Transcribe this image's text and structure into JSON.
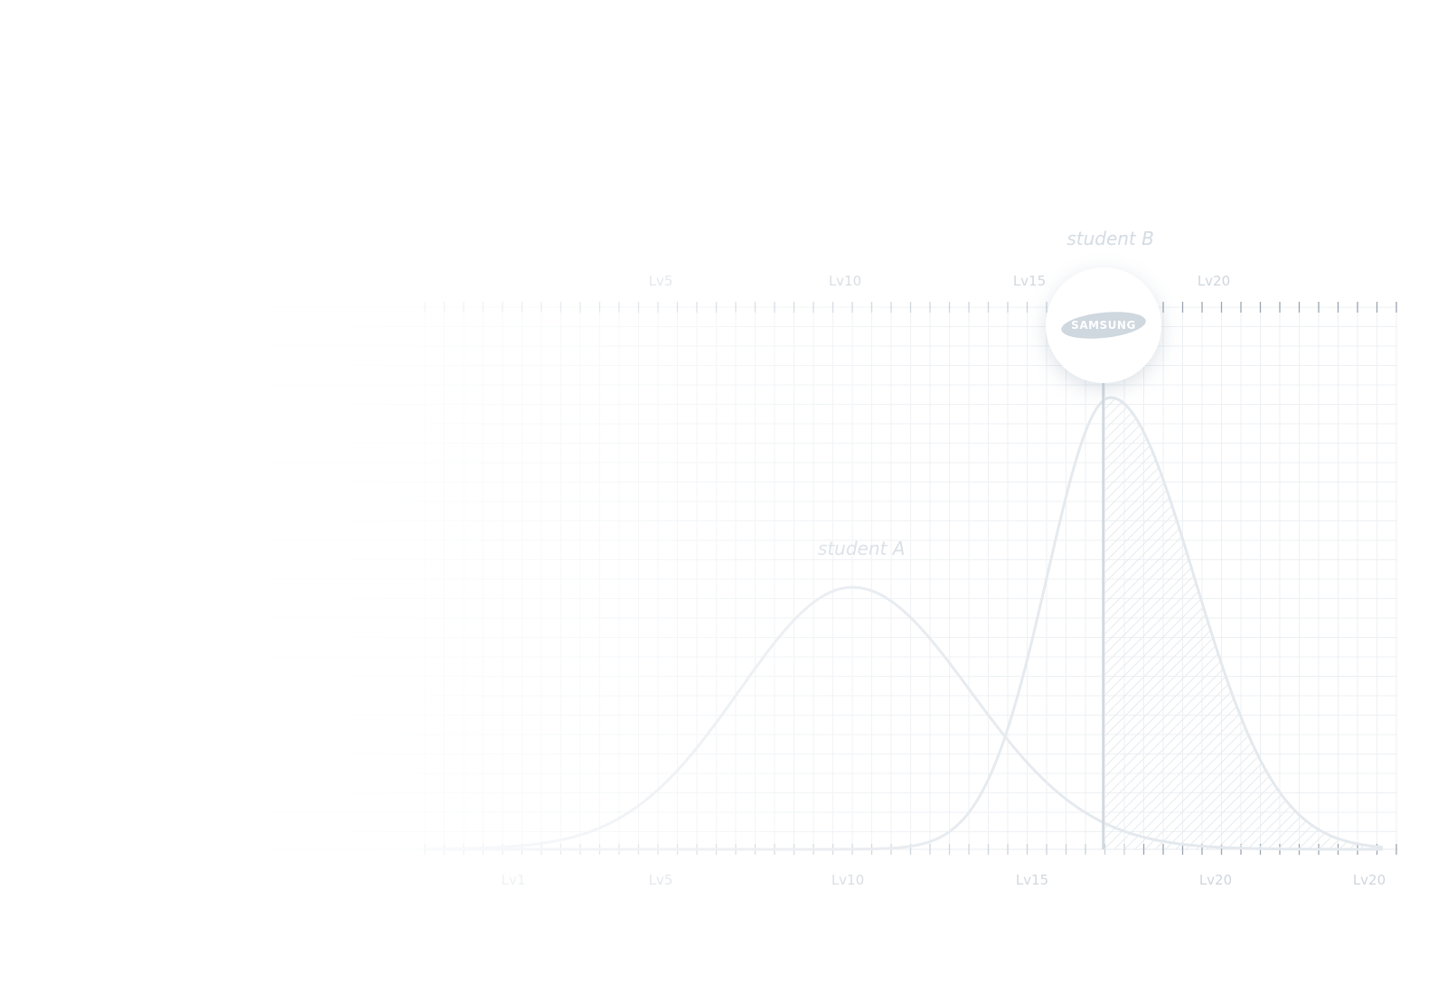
{
  "chart_data": {
    "type": "line",
    "x_ticks_top": [
      "Lv5",
      "Lv10",
      "Lv15",
      "Lv20"
    ],
    "x_ticks_bottom": [
      "Lv1",
      "Lv5",
      "Lv10",
      "Lv15",
      "Lv20",
      "Lv20"
    ],
    "series": [
      {
        "name": "student A",
        "peak_level": 10.2
      },
      {
        "name": "student B",
        "peak_level": 17.2
      }
    ],
    "marker_level": 17,
    "marker_logo": "SAMSUNG",
    "shaded_region": "right of marker under student B curve",
    "grid": true
  },
  "colors": {
    "curve": "#e4e9ee",
    "marker_line": "#cdd6df",
    "grid": "#edf0f3",
    "hatch": "#e9edf1"
  },
  "icons": {
    "badge": "samsung-logo-icon"
  }
}
